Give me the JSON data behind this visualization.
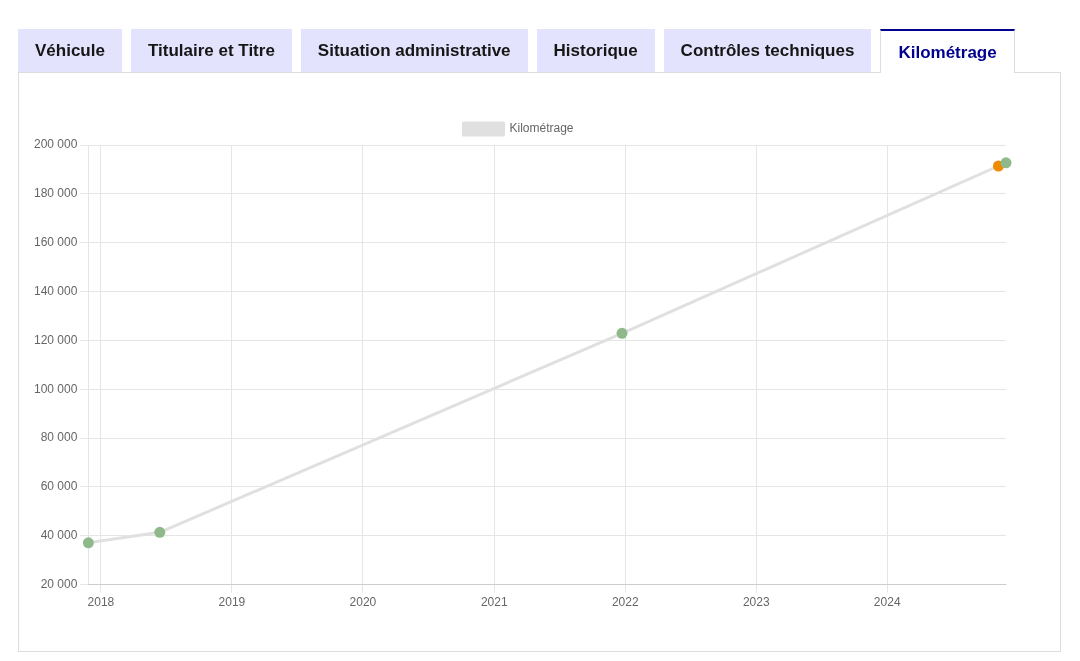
{
  "chart_data": {
    "type": "line",
    "annotations": [
      "Véhicule",
      "Titulaire et Titre",
      "Situation administrative",
      "Historique",
      "Contrôles techniques",
      "Kilométrage"
    ],
    "x": [
      "2017-11-27",
      "2018-06-14",
      "2021-12-23",
      "2024-11-06",
      "2024-11-27"
    ],
    "series": [
      {
        "name": "Kilométrage",
        "color": "#e0e0e0",
        "colors": [
          "#8fb98b",
          "#8fb98b",
          "#8fb98b",
          "#f08a00",
          "#8fb98b"
        ],
        "values": [
          37100,
          41400,
          122900,
          191400,
          192700
        ]
      }
    ],
    "xlim": [
      "2017-11-27",
      "2024-11-27"
    ],
    "xticks": [
      "2018",
      "2019",
      "2020",
      "2021",
      "2022",
      "2023",
      "2024"
    ],
    "ylim": [
      20000,
      200000
    ],
    "yticks": [
      {
        "value": 20000,
        "label": "20 000"
      },
      {
        "value": 40000,
        "label": "40 000"
      },
      {
        "value": 60000,
        "label": "60 000"
      },
      {
        "value": 80000,
        "label": "80 000"
      },
      {
        "value": 100000,
        "label": "100 000"
      },
      {
        "value": 120000,
        "label": "120 000"
      },
      {
        "value": 140000,
        "label": "140 000"
      },
      {
        "value": 160000,
        "label": "160 000"
      },
      {
        "value": 180000,
        "label": "180 000"
      },
      {
        "value": 200000,
        "label": "200 000"
      }
    ],
    "grid": true,
    "legend": "top",
    "marker": "circle",
    "line_style": "solid"
  }
}
